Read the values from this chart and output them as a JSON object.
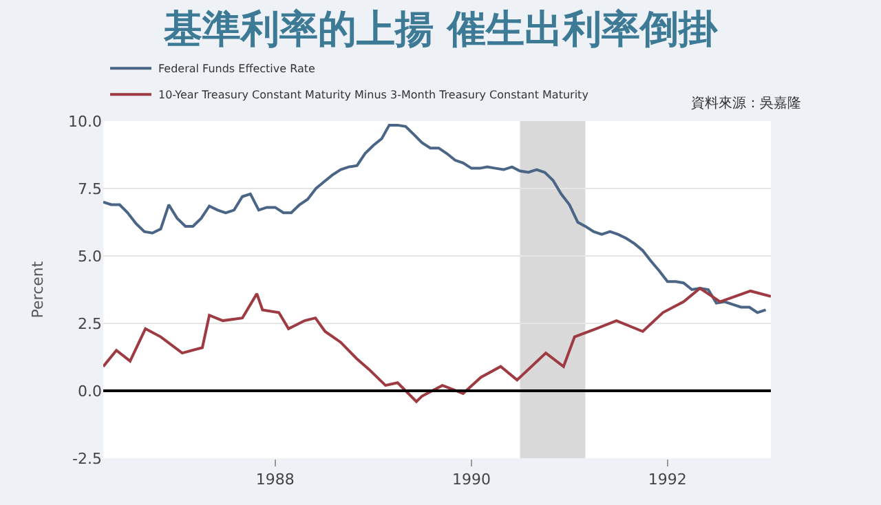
{
  "chart_data": {
    "type": "line",
    "title": "基準利率的上揚 催生出利率倒掛",
    "ylabel": "Percent",
    "annotations": [
      "資料來源：吳嘉隆"
    ],
    "legend": "top left",
    "grid": "y",
    "xlim": [
      "1986-04-01",
      "1993-01-20"
    ],
    "xticks": [
      {
        "value": "1988-01-01",
        "label": "1988"
      },
      {
        "value": "1990-01-01",
        "label": "1990"
      },
      {
        "value": "1992-01-01",
        "label": "1992"
      }
    ],
    "ylim": [
      -2.5,
      10
    ],
    "yticks": [
      {
        "value": -2.5,
        "label": "-2.5"
      },
      {
        "value": 0,
        "label": "0.0"
      },
      {
        "value": 2.5,
        "label": "2.5"
      },
      {
        "value": 5,
        "label": "5.0"
      },
      {
        "value": 7.5,
        "label": "7.5"
      },
      {
        "value": 10,
        "label": "10.0"
      }
    ],
    "ref_lines": [
      {
        "axis": "y",
        "value": 0,
        "color": "#000000"
      }
    ],
    "bands": [
      {
        "axis": "x",
        "from": "1990-07-01",
        "to": "1991-03-01",
        "color": "#d9d9d9"
      }
    ],
    "series": [
      {
        "name": "Federal Funds Effective Rate",
        "color": "#4a6585",
        "x": [
          "1986-04",
          "1986-05",
          "1986-06",
          "1986-07",
          "1986-08",
          "1986-09",
          "1986-10",
          "1986-11",
          "1986-12",
          "1987-01",
          "1987-02",
          "1987-03",
          "1987-04",
          "1987-05",
          "1987-06",
          "1987-07",
          "1987-08",
          "1987-09",
          "1987-10",
          "1987-11",
          "1987-12",
          "1988-01",
          "1988-02",
          "1988-03",
          "1988-04",
          "1988-05",
          "1988-06",
          "1988-07",
          "1988-08",
          "1988-09",
          "1988-10",
          "1988-11",
          "1988-12",
          "1989-01",
          "1989-02",
          "1989-03",
          "1989-04",
          "1989-05",
          "1989-06",
          "1989-07",
          "1989-08",
          "1989-09",
          "1989-10",
          "1989-11",
          "1989-12",
          "1990-01",
          "1990-02",
          "1990-03",
          "1990-04",
          "1990-05",
          "1990-06",
          "1990-07",
          "1990-08",
          "1990-09",
          "1990-10",
          "1990-11",
          "1990-12",
          "1991-01",
          "1991-02",
          "1991-03",
          "1991-04",
          "1991-05",
          "1991-06",
          "1991-07",
          "1991-08",
          "1991-09",
          "1991-10",
          "1991-11",
          "1991-12",
          "1992-01",
          "1992-02",
          "1992-03",
          "1992-04",
          "1992-05",
          "1992-06",
          "1992-07",
          "1992-08",
          "1992-09",
          "1992-10",
          "1992-11",
          "1992-12",
          "1993-01"
        ],
        "values": [
          7.0,
          6.9,
          6.9,
          6.6,
          6.2,
          5.9,
          5.85,
          6.0,
          6.9,
          6.4,
          6.1,
          6.1,
          6.4,
          6.85,
          6.7,
          6.6,
          6.7,
          7.2,
          7.3,
          6.7,
          6.8,
          6.8,
          6.6,
          6.6,
          6.9,
          7.1,
          7.5,
          7.75,
          8.0,
          8.2,
          8.3,
          8.35,
          8.8,
          9.1,
          9.35,
          9.85,
          9.85,
          9.8,
          9.5,
          9.2,
          9.0,
          9.0,
          8.8,
          8.55,
          8.45,
          8.25,
          8.25,
          8.3,
          8.25,
          8.2,
          8.3,
          8.15,
          8.1,
          8.2,
          8.1,
          7.8,
          7.3,
          6.9,
          6.25,
          6.1,
          5.9,
          5.8,
          5.9,
          5.8,
          5.65,
          5.45,
          5.2,
          4.8,
          4.45,
          4.05,
          4.05,
          4.0,
          3.75,
          3.8,
          3.75,
          3.25,
          3.3,
          3.2,
          3.1,
          3.1,
          2.9,
          3.0
        ]
      },
      {
        "name": "10-Year Treasury Constant Maturity Minus 3-Month Treasury Constant Maturity",
        "color": "#9e3b42",
        "x": [
          "1986-04-01",
          "1986-05-20",
          "1986-07-10",
          "1986-09-05",
          "1986-11-01",
          "1987-01-20",
          "1987-04-05",
          "1987-05-01",
          "1987-06-20",
          "1987-09-01",
          "1987-10-25",
          "1987-11-15",
          "1988-01-15",
          "1988-02-20",
          "1988-04-20",
          "1988-05-30",
          "1988-07-05",
          "1988-09-01",
          "1988-10-30",
          "1988-12-15",
          "1989-02-15",
          "1989-04-01",
          "1989-06-10",
          "1989-07-01",
          "1989-09-15",
          "1989-12-01",
          "1990-02-05",
          "1990-04-20",
          "1990-06-20",
          "1990-10-05",
          "1990-12-10",
          "1991-01-20",
          "1991-04-10",
          "1991-06-25",
          "1991-10-01",
          "1991-12-15",
          "1992-03-01",
          "1992-05-01",
          "1992-07-15",
          "1992-11-05",
          "1993-01-20"
        ],
        "values": [
          0.9,
          1.5,
          1.1,
          2.3,
          2.0,
          1.4,
          1.6,
          2.8,
          2.6,
          2.7,
          3.6,
          3.0,
          2.9,
          2.3,
          2.6,
          2.7,
          2.2,
          1.8,
          1.2,
          0.8,
          0.2,
          0.3,
          -0.4,
          -0.2,
          0.2,
          -0.1,
          0.5,
          0.9,
          0.4,
          1.4,
          0.9,
          2.0,
          2.3,
          2.6,
          2.2,
          2.9,
          3.3,
          3.8,
          3.3,
          3.7,
          3.5
        ]
      }
    ]
  }
}
